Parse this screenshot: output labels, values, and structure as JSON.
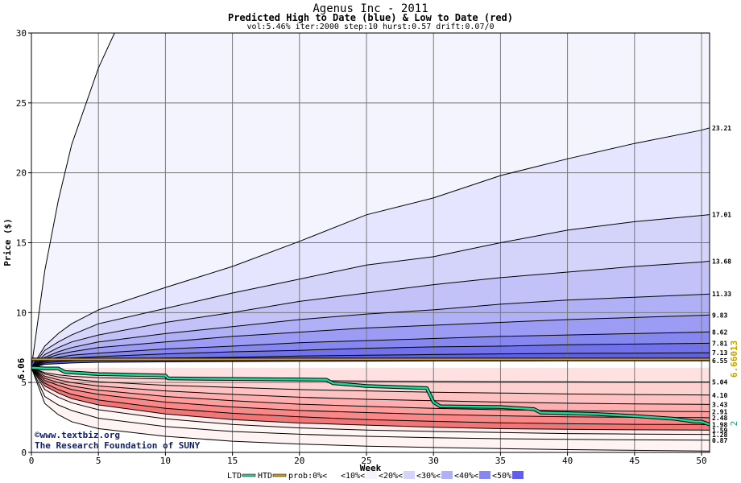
{
  "chart_data": {
    "type": "area",
    "title": "Agenus Inc - 2011",
    "subtitle": "Predicted High to Date (blue) &  Low to Date (red)",
    "params": "vol:5.46% iter:2000 step:10 hurst:0.57 drift:0.07/0",
    "xlabel": "Week",
    "ylabel": "Price ($)",
    "xlim": [
      0,
      50.6
    ],
    "ylim": [
      0,
      30
    ],
    "xticks": [
      "0",
      "5",
      "10",
      "15",
      "20",
      "25",
      "30",
      "35",
      "40",
      "45",
      "50"
    ],
    "yticks": [
      "0",
      "5",
      "10",
      "15",
      "20",
      "25",
      "30"
    ],
    "grid": true,
    "start_price_label": "6.06",
    "start_price": 6.06,
    "x": [
      0,
      1,
      2,
      3,
      5,
      10,
      15,
      20,
      25,
      30,
      35,
      40,
      45,
      50,
      50.6
    ],
    "high_bands": [
      {
        "label": "23.21",
        "values": [
          6.06,
          7.6,
          8.5,
          9.2,
          10.2,
          11.8,
          13.3,
          15.1,
          17.0,
          18.2,
          19.8,
          21.0,
          22.1,
          23.05,
          23.21
        ]
      },
      {
        "label": "17.01",
        "values": [
          6.06,
          7.3,
          7.9,
          8.4,
          9.2,
          10.3,
          11.4,
          12.4,
          13.4,
          14.0,
          15.0,
          15.9,
          16.5,
          16.95,
          17.01
        ]
      },
      {
        "label": "13.68",
        "values": [
          6.06,
          7.0,
          7.5,
          7.9,
          8.4,
          9.3,
          10.0,
          10.8,
          11.4,
          12.0,
          12.5,
          12.9,
          13.3,
          13.62,
          13.68
        ]
      },
      {
        "label": "11.33",
        "values": [
          6.06,
          6.8,
          7.2,
          7.5,
          7.9,
          8.5,
          9.0,
          9.5,
          9.9,
          10.2,
          10.6,
          10.9,
          11.1,
          11.3,
          11.33
        ]
      },
      {
        "label": "9.83",
        "values": [
          6.06,
          6.7,
          7.0,
          7.2,
          7.5,
          7.9,
          8.3,
          8.6,
          8.9,
          9.1,
          9.3,
          9.5,
          9.65,
          9.8,
          9.83
        ]
      },
      {
        "label": "8.62",
        "values": [
          6.06,
          6.6,
          6.8,
          6.95,
          7.1,
          7.4,
          7.6,
          7.85,
          8.0,
          8.15,
          8.3,
          8.4,
          8.5,
          8.6,
          8.62
        ]
      },
      {
        "label": "7.81",
        "values": [
          6.06,
          6.5,
          6.65,
          6.75,
          6.85,
          7.05,
          7.2,
          7.3,
          7.45,
          7.55,
          7.6,
          7.7,
          7.75,
          7.8,
          7.81
        ]
      },
      {
        "label": "7.13",
        "values": [
          6.06,
          6.4,
          6.5,
          6.55,
          6.65,
          6.75,
          6.8,
          6.9,
          6.95,
          7.0,
          7.05,
          7.08,
          7.1,
          7.12,
          7.13
        ]
      },
      {
        "label": "6.55",
        "values": [
          6.06,
          6.3,
          6.35,
          6.4,
          6.45,
          6.48,
          6.5,
          6.52,
          6.53,
          6.54,
          6.54,
          6.55,
          6.55,
          6.55,
          6.55
        ]
      }
    ],
    "low_bands": [
      {
        "label": "5.04",
        "values": [
          6.06,
          5.7,
          5.55,
          5.45,
          5.35,
          5.25,
          5.2,
          5.15,
          5.1,
          5.08,
          5.06,
          5.05,
          5.04,
          5.04,
          5.04
        ]
      },
      {
        "label": "4.10",
        "values": [
          6.06,
          5.6,
          5.4,
          5.25,
          5.05,
          4.8,
          4.65,
          4.5,
          4.4,
          4.3,
          4.25,
          4.18,
          4.14,
          4.11,
          4.1
        ]
      },
      {
        "label": "3.43",
        "values": [
          6.06,
          5.45,
          5.2,
          5.0,
          4.75,
          4.4,
          4.15,
          3.95,
          3.8,
          3.7,
          3.6,
          3.52,
          3.47,
          3.44,
          3.43
        ]
      },
      {
        "label": "2.91",
        "values": [
          6.06,
          5.3,
          5.0,
          4.75,
          4.45,
          4.0,
          3.7,
          3.45,
          3.3,
          3.15,
          3.05,
          2.98,
          2.94,
          2.92,
          2.91
        ]
      },
      {
        "label": "2.48",
        "values": [
          6.06,
          5.15,
          4.8,
          4.5,
          4.15,
          3.6,
          3.25,
          3.0,
          2.85,
          2.72,
          2.62,
          2.55,
          2.51,
          2.49,
          2.48
        ]
      },
      {
        "label": "1.98",
        "values": [
          6.06,
          4.95,
          4.5,
          4.15,
          3.75,
          3.15,
          2.8,
          2.55,
          2.35,
          2.22,
          2.12,
          2.05,
          2.01,
          1.99,
          1.98
        ]
      },
      {
        "label": "1.59",
        "values": [
          6.06,
          4.75,
          4.25,
          3.85,
          3.4,
          2.75,
          2.35,
          2.1,
          1.95,
          1.8,
          1.7,
          1.65,
          1.62,
          1.6,
          1.59
        ]
      },
      {
        "label": "1.28",
        "values": [
          6.06,
          4.5,
          3.95,
          3.55,
          3.05,
          2.4,
          2.0,
          1.75,
          1.6,
          1.5,
          1.42,
          1.35,
          1.31,
          1.29,
          1.28
        ]
      },
      {
        "label": "0.87",
        "values": [
          6.06,
          4.0,
          3.4,
          3.0,
          2.45,
          1.85,
          1.5,
          1.3,
          1.15,
          1.05,
          0.98,
          0.93,
          0.9,
          0.88,
          0.87
        ]
      }
    ],
    "max_line": {
      "x": [
        0,
        1,
        2,
        3,
        5,
        6.2
      ],
      "values": [
        6.06,
        13.0,
        18.0,
        22.0,
        27.5,
        30.0
      ]
    },
    "min_line": {
      "x": [
        0,
        1,
        2,
        3,
        5,
        10,
        15,
        20,
        25,
        30,
        35,
        40,
        45,
        50,
        50.6
      ],
      "values": [
        6.06,
        3.5,
        2.7,
        2.2,
        1.7,
        1.15,
        0.8,
        0.6,
        0.45,
        0.35,
        0.27,
        0.2,
        0.15,
        0.1,
        0.09
      ]
    },
    "ltd_line": {
      "label": "LTD",
      "color": "#1ed79a",
      "x": [
        0,
        1,
        2,
        2.5,
        5,
        10,
        10.2,
        15,
        22,
        22.5,
        25,
        29.5,
        30,
        30.5,
        35,
        37.5,
        38,
        42,
        45,
        48,
        49.5,
        50,
        50.6
      ],
      "values": [
        6.06,
        6.0,
        6.0,
        5.75,
        5.6,
        5.5,
        5.3,
        5.25,
        5.2,
        4.95,
        4.75,
        4.6,
        3.6,
        3.3,
        3.25,
        3.1,
        2.85,
        2.75,
        2.6,
        2.4,
        2.2,
        2.2,
        2.0
      ]
    },
    "htd_line": {
      "label": "HTD",
      "color": "#d4a000",
      "value": 6.66013,
      "label_text": "6.66013"
    },
    "right_axis_label": "2",
    "band_colors_high": [
      "#f4f4ff",
      "#e5e5ff",
      "#d4d4fb",
      "#c2c2f9",
      "#b0b0f6",
      "#9c9cf4",
      "#8787f0",
      "#7272ed",
      "#5f5fe9"
    ],
    "band_colors_low": [
      "#ffe1e1",
      "#ffd2d2",
      "#ffc2c2",
      "#ffafaf",
      "#ff9c9c",
      "#fb8888",
      "#f27676",
      "#ffe9e9",
      "#fff6f6"
    ],
    "watermark_line1": "©www.textbiz.org",
    "watermark_line2": "The Research Foundation of SUNY",
    "legend": {
      "items": [
        {
          "label": "LTD",
          "kind": "line",
          "color": "#1ed79a"
        },
        {
          "label": "HTD",
          "kind": "line",
          "color": "#d4a000"
        },
        {
          "label": "prob:0%<",
          "kind": "swatch",
          "color": "#ffffff"
        },
        {
          "label": "<10%<",
          "kind": "swatch",
          "color": "#f4f4ff"
        },
        {
          "label": "<20%<",
          "kind": "swatch",
          "color": "#d4d4fb"
        },
        {
          "label": "<30%<",
          "kind": "swatch",
          "color": "#b0b0f6"
        },
        {
          "label": "<40%<",
          "kind": "swatch",
          "color": "#8787f0"
        },
        {
          "label": "<50%",
          "kind": "swatch",
          "color": "#5f5fe9"
        }
      ]
    }
  }
}
